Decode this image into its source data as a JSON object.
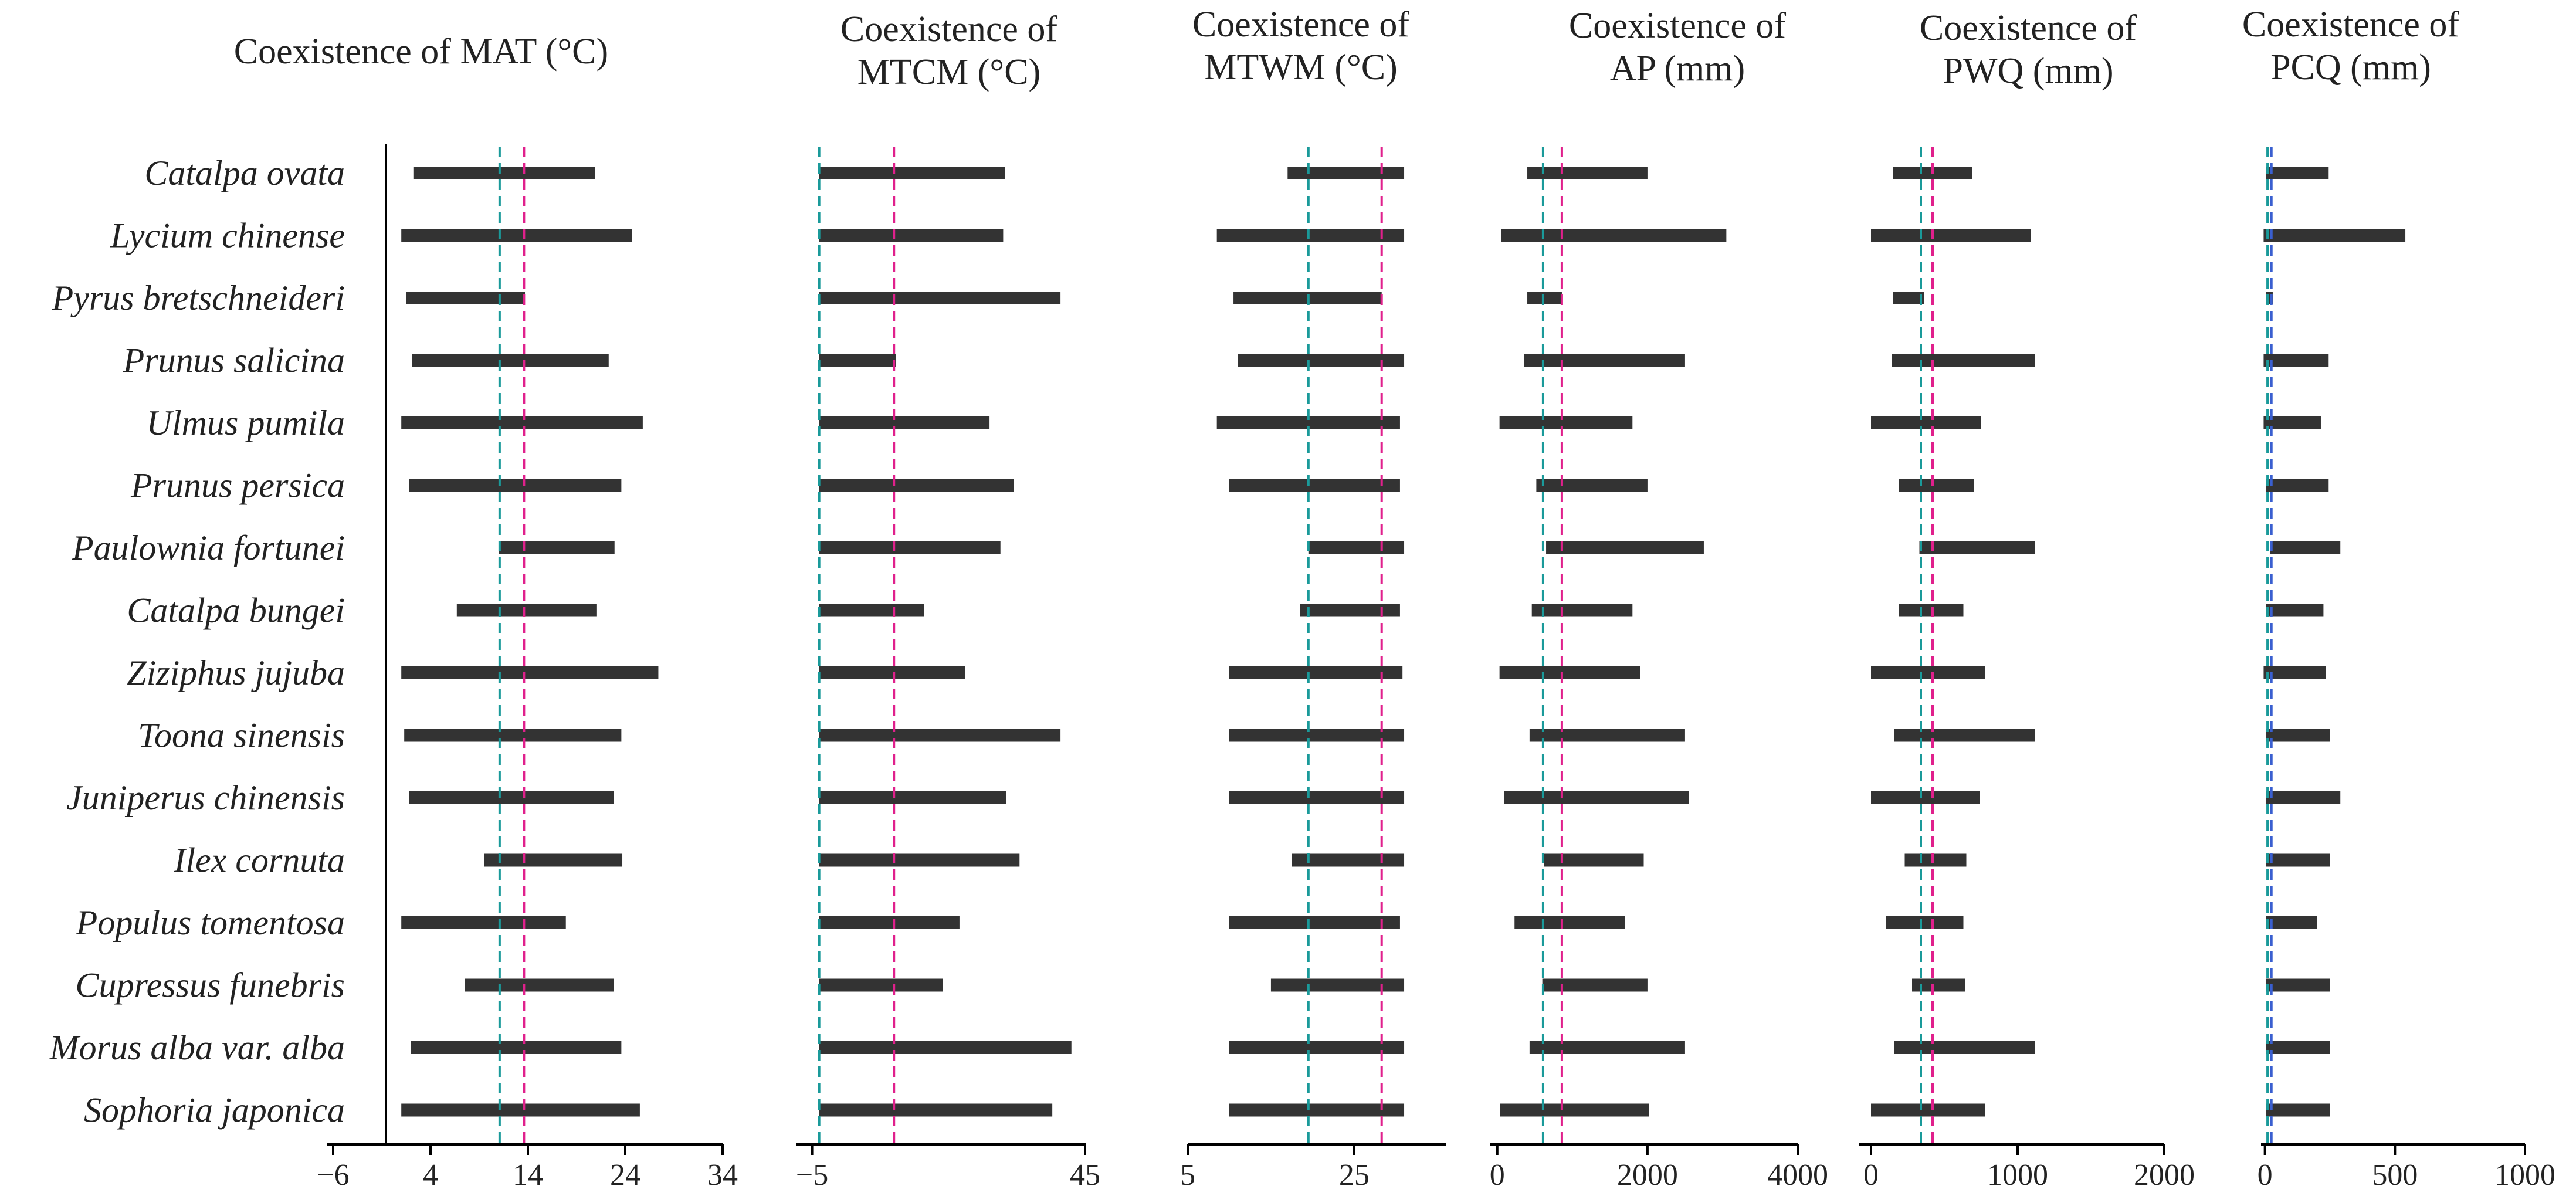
{
  "colors": {
    "bar": "#333333",
    "axis": "#000000",
    "site_line_teal": "#1a9a9a",
    "site_line_magenta": "#e0208c",
    "site_line_blue": "#3a5fd0"
  },
  "chart_data": [
    {
      "type": "bar",
      "orientation": "horizontal-range",
      "title": "Coexistence of MAT (°C)",
      "xlim": [
        -6,
        34
      ],
      "ticks": [
        -6,
        4,
        14,
        24,
        34
      ],
      "tick_labels": [
        "−6",
        "4",
        "14",
        "24",
        "34"
      ],
      "reference_lines": [
        11.1,
        13.6
      ],
      "categories": [
        "Catalpa ovata",
        "Lycium chinense",
        "Pyrus bretschneideri",
        "Prunus salicina",
        "Ulmus pumila",
        "Prunus persica",
        "Paulownia fortunei",
        "Catalpa bungei",
        "Ziziphus jujuba",
        "Toona sinensis",
        "Juniperus chinensis",
        "Ilex cornuta",
        "Populus tomentosa",
        "Cupressus funebris",
        "Morus alba var. alba",
        "Sophoria japonica"
      ],
      "ranges": [
        [
          2.3,
          20.9
        ],
        [
          1.0,
          24.7
        ],
        [
          1.5,
          13.7
        ],
        [
          2.1,
          22.3
        ],
        [
          1.0,
          25.8
        ],
        [
          1.8,
          23.6
        ],
        [
          11.0,
          22.9
        ],
        [
          6.7,
          21.1
        ],
        [
          1.0,
          27.4
        ],
        [
          1.3,
          23.6
        ],
        [
          1.8,
          22.8
        ],
        [
          9.5,
          23.7
        ],
        [
          1.0,
          17.9
        ],
        [
          7.5,
          22.8
        ],
        [
          2.0,
          23.6
        ],
        [
          1.0,
          25.5
        ]
      ]
    },
    {
      "type": "bar",
      "orientation": "horizontal-range",
      "title_lines": [
        "Coexistence of",
        "MTCM (°C)"
      ],
      "xlim": [
        -8.5,
        45
      ],
      "ticks": [
        -5,
        45
      ],
      "tick_labels": [
        "−5",
        "45"
      ],
      "reference_lines": [
        -3.7,
        10.0
      ],
      "ranges": [
        [
          -3.7,
          30.3
        ],
        [
          -3.7,
          30.0
        ],
        [
          -3.7,
          40.5
        ],
        [
          -3.7,
          10.3
        ],
        [
          -3.7,
          27.5
        ],
        [
          -3.7,
          32.0
        ],
        [
          -3.7,
          29.5
        ],
        [
          -3.7,
          15.5
        ],
        [
          -3.7,
          23.0
        ],
        [
          -3.7,
          40.5
        ],
        [
          -3.7,
          30.5
        ],
        [
          -3.7,
          33.0
        ],
        [
          -3.7,
          22.0
        ],
        [
          -3.7,
          19.0
        ],
        [
          -3.7,
          42.5
        ],
        [
          -3.7,
          39.0
        ]
      ]
    },
    {
      "type": "bar",
      "orientation": "horizontal-range",
      "title_lines": [
        "Coexistence of",
        "MTWM (°C)"
      ],
      "xlim": [
        5,
        36
      ],
      "ticks": [
        5,
        25
      ],
      "tick_labels": [
        "5",
        "25"
      ],
      "reference_lines": [
        19.5,
        28.3
      ],
      "ranges": [
        [
          17.0,
          31.0
        ],
        [
          8.5,
          31.0
        ],
        [
          10.5,
          28.3
        ],
        [
          11.0,
          31.0
        ],
        [
          8.5,
          30.5
        ],
        [
          10.0,
          30.5
        ],
        [
          19.5,
          31.0
        ],
        [
          18.5,
          30.5
        ],
        [
          10.0,
          30.8
        ],
        [
          10.0,
          31.0
        ],
        [
          10.0,
          31.0
        ],
        [
          17.5,
          31.0
        ],
        [
          10.0,
          30.5
        ],
        [
          15.0,
          31.0
        ],
        [
          10.0,
          31.0
        ],
        [
          10.0,
          31.0
        ]
      ]
    },
    {
      "type": "bar",
      "orientation": "horizontal-range",
      "title_lines": [
        "Coexistence of",
        "AP (mm)"
      ],
      "xlim": [
        -100,
        4000
      ],
      "ticks": [
        0,
        2000,
        4000
      ],
      "tick_labels": [
        "0",
        "2000",
        "4000"
      ],
      "reference_lines": [
        610,
        860
      ],
      "ranges": [
        [
          400,
          2000
        ],
        [
          50,
          3050
        ],
        [
          400,
          860
        ],
        [
          360,
          2500
        ],
        [
          30,
          1800
        ],
        [
          520,
          2000
        ],
        [
          650,
          2750
        ],
        [
          460,
          1800
        ],
        [
          30,
          1900
        ],
        [
          430,
          2500
        ],
        [
          90,
          2550
        ],
        [
          620,
          1950
        ],
        [
          230,
          1700
        ],
        [
          600,
          2000
        ],
        [
          430,
          2500
        ],
        [
          40,
          2020
        ]
      ]
    },
    {
      "type": "bar",
      "orientation": "horizontal-range",
      "title_lines": [
        "Coexistence of",
        "PWQ (mm)"
      ],
      "xlim": [
        -80,
        2000
      ],
      "ticks": [
        0,
        1000,
        2000
      ],
      "tick_labels": [
        "0",
        "1000",
        "2000"
      ],
      "reference_lines": [
        340,
        420
      ],
      "ranges": [
        [
          150,
          690
        ],
        [
          0,
          1090
        ],
        [
          150,
          360
        ],
        [
          140,
          1120
        ],
        [
          0,
          750
        ],
        [
          190,
          700
        ],
        [
          330,
          1120
        ],
        [
          190,
          630
        ],
        [
          0,
          780
        ],
        [
          160,
          1120
        ],
        [
          0,
          740
        ],
        [
          230,
          650
        ],
        [
          100,
          630
        ],
        [
          280,
          640
        ],
        [
          160,
          1120
        ],
        [
          0,
          780
        ]
      ]
    },
    {
      "type": "bar",
      "orientation": "horizontal-range",
      "title_lines": [
        "Coexistence of",
        "PCQ (mm)"
      ],
      "xlim": [
        -15,
        1000
      ],
      "ticks": [
        0,
        500,
        1000
      ],
      "tick_labels": [
        "0",
        "500",
        "1000"
      ],
      "reference_lines": [
        10,
        25
      ],
      "ranges": [
        [
          5,
          245
        ],
        [
          -5,
          540
        ],
        [
          5,
          30
        ],
        [
          -5,
          245
        ],
        [
          -5,
          215
        ],
        [
          5,
          245
        ],
        [
          20,
          290
        ],
        [
          5,
          225
        ],
        [
          -5,
          235
        ],
        [
          5,
          250
        ],
        [
          5,
          290
        ],
        [
          5,
          250
        ],
        [
          5,
          200
        ],
        [
          5,
          250
        ],
        [
          5,
          250
        ],
        [
          5,
          250
        ]
      ]
    }
  ]
}
